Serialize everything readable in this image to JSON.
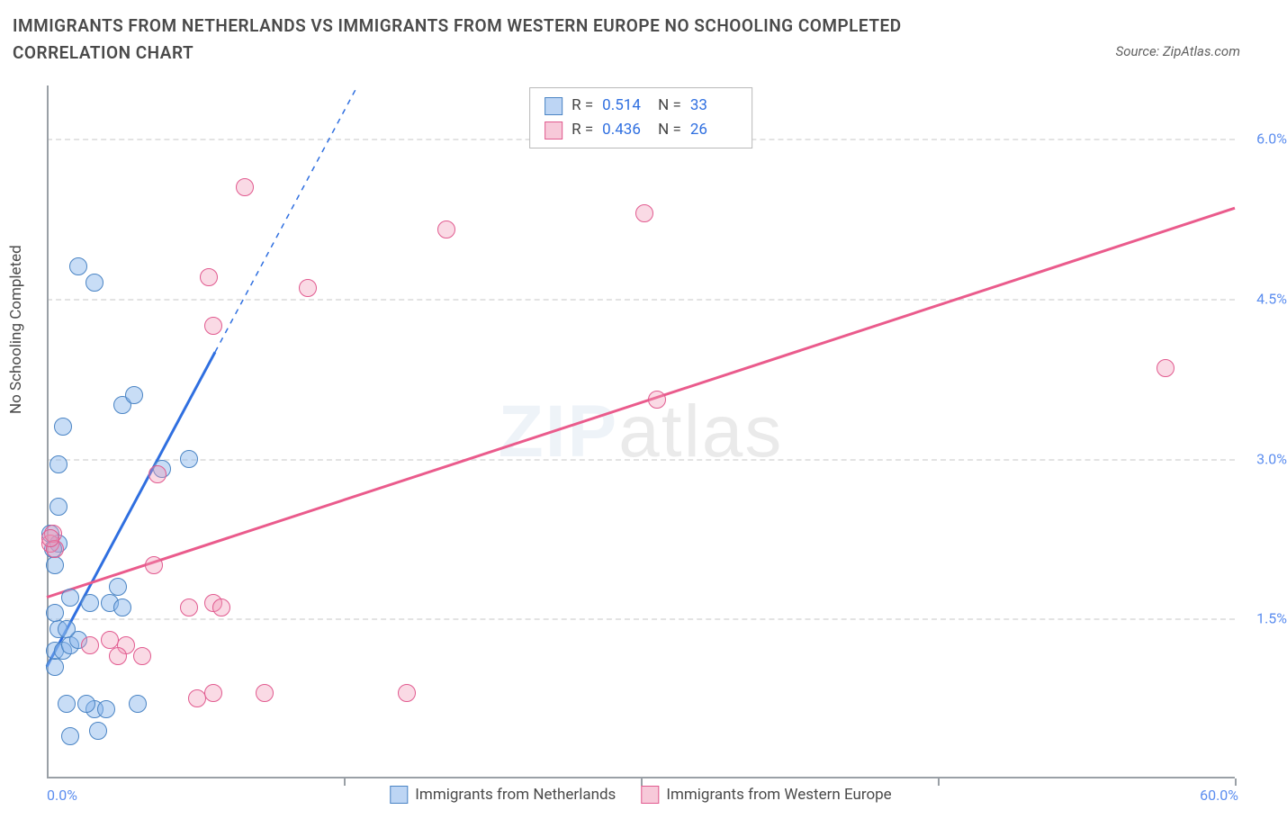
{
  "title": "IMMIGRANTS FROM NETHERLANDS VS IMMIGRANTS FROM WESTERN EUROPE NO SCHOOLING COMPLETED CORRELATION CHART",
  "source_label": "Source: ZipAtlas.com",
  "y_axis_label": "No Schooling Completed",
  "watermark_a": "ZIP",
  "watermark_b": "atlas",
  "chart": {
    "type": "scatter-with-regression",
    "background_color": "#ffffff",
    "axis_color": "#9aa0a6",
    "grid_color": "#e3e3e3",
    "tick_label_color": "#5b8def",
    "text_color": "#4a4a4a",
    "xlim": [
      0,
      60
    ],
    "ylim": [
      0,
      6.5
    ],
    "y_ticks": [
      1.5,
      3.0,
      4.5,
      6.0
    ],
    "y_tick_labels": [
      "1.5%",
      "3.0%",
      "4.5%",
      "6.0%"
    ],
    "x_ticks": [
      15,
      30,
      45,
      60
    ],
    "x_corner_left": "0.0%",
    "x_corner_right": "60.0%",
    "marker_radius": 9,
    "series": [
      {
        "key": "netherlands",
        "label": "Immigrants from Netherlands",
        "fill": "rgba(134,179,235,0.45)",
        "stroke": "#4a84c4",
        "line_color": "#2f6fe0",
        "line_width": 3,
        "dashed_extension": true,
        "R": "0.514",
        "N": "33",
        "reg_x0": 0,
        "reg_y0": 1.05,
        "reg_x1": 8.5,
        "reg_y1": 4.0,
        "points": [
          [
            0.4,
            1.05
          ],
          [
            0.4,
            1.2
          ],
          [
            0.8,
            1.2
          ],
          [
            1.2,
            1.25
          ],
          [
            1.6,
            1.3
          ],
          [
            0.6,
            1.4
          ],
          [
            1.0,
            1.4
          ],
          [
            2.4,
            0.65
          ],
          [
            3.0,
            0.65
          ],
          [
            4.6,
            0.7
          ],
          [
            2.0,
            0.7
          ],
          [
            1.0,
            0.7
          ],
          [
            0.4,
            1.55
          ],
          [
            1.2,
            1.7
          ],
          [
            2.2,
            1.65
          ],
          [
            3.2,
            1.65
          ],
          [
            3.8,
            1.6
          ],
          [
            0.4,
            2.0
          ],
          [
            0.6,
            2.2
          ],
          [
            0.3,
            2.15
          ],
          [
            0.2,
            2.3
          ],
          [
            3.6,
            1.8
          ],
          [
            0.6,
            2.55
          ],
          [
            0.6,
            2.95
          ],
          [
            5.8,
            2.9
          ],
          [
            7.2,
            3.0
          ],
          [
            3.8,
            3.5
          ],
          [
            0.8,
            3.3
          ],
          [
            4.4,
            3.6
          ],
          [
            2.4,
            4.65
          ],
          [
            1.6,
            4.8
          ],
          [
            1.2,
            0.4
          ],
          [
            2.6,
            0.45
          ]
        ]
      },
      {
        "key": "western_europe",
        "label": "Immigrants from Western Europe",
        "fill": "rgba(240,148,180,0.35)",
        "stroke": "#e15a8f",
        "line_color": "#ea5b8c",
        "line_width": 3,
        "dashed_extension": false,
        "R": "0.436",
        "N": "26",
        "reg_x0": 0,
        "reg_y0": 1.7,
        "reg_x1": 60,
        "reg_y1": 5.35,
        "points": [
          [
            0.2,
            2.2
          ],
          [
            0.3,
            2.3
          ],
          [
            0.4,
            2.15
          ],
          [
            2.2,
            1.25
          ],
          [
            3.2,
            1.3
          ],
          [
            4.0,
            1.25
          ],
          [
            3.6,
            1.15
          ],
          [
            4.8,
            1.15
          ],
          [
            7.2,
            1.6
          ],
          [
            8.4,
            1.65
          ],
          [
            8.8,
            1.6
          ],
          [
            7.6,
            0.75
          ],
          [
            8.4,
            0.8
          ],
          [
            11.0,
            0.8
          ],
          [
            18.2,
            0.8
          ],
          [
            5.4,
            2.0
          ],
          [
            5.6,
            2.85
          ],
          [
            8.4,
            4.25
          ],
          [
            8.2,
            4.7
          ],
          [
            13.2,
            4.6
          ],
          [
            10.0,
            5.55
          ],
          [
            20.2,
            5.15
          ],
          [
            30.2,
            5.3
          ],
          [
            30.8,
            3.55
          ],
          [
            56.5,
            3.85
          ],
          [
            0.2,
            2.25
          ]
        ]
      }
    ]
  },
  "stats_box": {
    "R_label": "R =",
    "N_label": "N ="
  },
  "x_legend": {
    "a": "Immigrants from Netherlands",
    "b": "Immigrants from Western Europe"
  }
}
